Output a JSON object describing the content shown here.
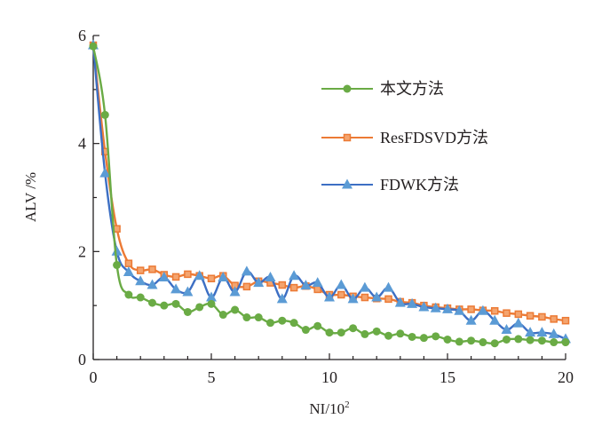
{
  "chart_data": {
    "type": "line",
    "title": "",
    "xlabel": "NI/10",
    "xlabel_superscript": "2",
    "ylabel": "ALV /%",
    "xlim": [
      0,
      20
    ],
    "ylim": [
      0,
      6
    ],
    "xticks": [
      0,
      5,
      10,
      15,
      20
    ],
    "yticks": [
      0,
      2,
      4,
      6
    ],
    "x_minor_step": 1,
    "y_minor_step": 1,
    "grid": false,
    "legend_position": "top-right",
    "x": [
      0,
      0.5,
      1,
      1.5,
      2,
      2.5,
      3,
      3.5,
      4,
      4.5,
      5,
      5.5,
      6,
      6.5,
      7,
      7.5,
      8,
      8.5,
      9,
      9.5,
      10,
      10.5,
      11,
      11.5,
      12,
      12.5,
      13,
      13.5,
      14,
      14.5,
      15,
      15.5,
      16,
      16.5,
      17,
      17.5,
      18,
      18.5,
      19,
      19.5,
      20
    ],
    "series": [
      {
        "name": "本文方法",
        "color": "#6aab45",
        "marker": "circle",
        "values": [
          5.8,
          4.53,
          1.75,
          1.2,
          1.15,
          1.05,
          1.0,
          1.03,
          0.88,
          0.97,
          1.03,
          0.83,
          0.92,
          0.78,
          0.78,
          0.68,
          0.72,
          0.68,
          0.55,
          0.62,
          0.5,
          0.5,
          0.58,
          0.47,
          0.52,
          0.44,
          0.48,
          0.42,
          0.4,
          0.43,
          0.37,
          0.33,
          0.35,
          0.32,
          0.3,
          0.37,
          0.38,
          0.36,
          0.35,
          0.32,
          0.32
        ]
      },
      {
        "name": "ResFDSVD方法",
        "color": "#ec7a35",
        "marker": "square",
        "values": [
          5.82,
          3.85,
          2.42,
          1.78,
          1.65,
          1.67,
          1.57,
          1.53,
          1.58,
          1.55,
          1.5,
          1.55,
          1.37,
          1.35,
          1.45,
          1.42,
          1.38,
          1.33,
          1.36,
          1.3,
          1.2,
          1.2,
          1.17,
          1.15,
          1.13,
          1.12,
          1.07,
          1.05,
          1.0,
          0.97,
          0.95,
          0.93,
          0.93,
          0.91,
          0.9,
          0.86,
          0.84,
          0.81,
          0.79,
          0.75,
          0.72
        ]
      },
      {
        "name": "FDWK方法",
        "color": "#4f8cc9",
        "marker": "triangle",
        "values": [
          5.82,
          3.45,
          2.0,
          1.62,
          1.45,
          1.38,
          1.52,
          1.3,
          1.25,
          1.55,
          1.15,
          1.52,
          1.25,
          1.63,
          1.42,
          1.52,
          1.12,
          1.55,
          1.37,
          1.42,
          1.15,
          1.38,
          1.12,
          1.33,
          1.15,
          1.33,
          1.05,
          1.03,
          0.97,
          0.95,
          0.93,
          0.9,
          0.72,
          0.9,
          0.72,
          0.55,
          0.67,
          0.5,
          0.5,
          0.47,
          0.38
        ]
      }
    ]
  }
}
